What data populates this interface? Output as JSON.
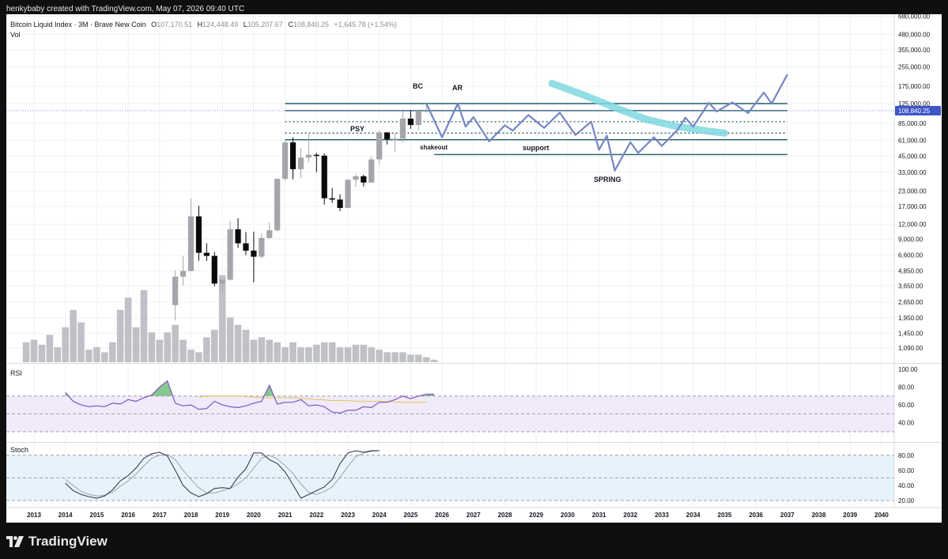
{
  "header": {
    "attribution": "henkybaby created with TradingView.com, May 07, 2026 09:40 UTC"
  },
  "legend": {
    "symbol": "Bitcoin Liquid Index · 3M · Brave New Coin",
    "o_label": "O",
    "o": "107,170.51",
    "h_label": "H",
    "h": "124,448.49",
    "l_label": "L",
    "l": "105,207.67",
    "c_label": "C",
    "c": "108,840.25",
    "change": "+1,645.78 (+1.54%)",
    "vol": "Vol"
  },
  "logo": {
    "text": "TradingView",
    "icon": "tradingview-logo-icon"
  },
  "colors": {
    "up": "#a5a6ab",
    "down": "#0a0a0a",
    "level": "#255b68",
    "projection": "#7686c4",
    "stroke": "#7fd8e0",
    "rsi_band": "#f0eafa",
    "stoch_band": "#e6f3fb"
  },
  "chart_data": [
    {
      "type": "candlestick",
      "title": "Bitcoin Liquid Index · 3M · Brave New Coin",
      "scale": "log",
      "ylim": [
        800,
        700000
      ],
      "y_ticks": [
        "680,000.00",
        "480,000.00",
        "355,000.00",
        "255,000.00",
        "175,000.00",
        "125,000.00",
        "85,000.00",
        "61,000.00",
        "45,000.00",
        "33,000.00",
        "23,000.00",
        "17,000.00",
        "12,000.00",
        "9,000.00",
        "6,600.00",
        "4,850.00",
        "3,650.00",
        "2,650.00",
        "1,950.00",
        "1,450.00",
        "1,090.00"
      ],
      "x_ticks": [
        "2013",
        "2014",
        "2015",
        "2016",
        "2017",
        "2018",
        "2019",
        "2020",
        "2021",
        "2022",
        "2023",
        "2024",
        "2025",
        "2026",
        "2027",
        "2028",
        "2029",
        "2030",
        "2031",
        "2032",
        "2033",
        "2034",
        "2035",
        "2036",
        "2037",
        "2038",
        "2039",
        "2040"
      ],
      "last_price": "108,840.25",
      "candles": [
        {
          "t": 2017.5,
          "o": 2500,
          "h": 4900,
          "l": 1850,
          "c": 4350
        },
        {
          "t": 2017.75,
          "o": 4350,
          "h": 6500,
          "l": 3650,
          "c": 4850
        },
        {
          "t": 2018.0,
          "o": 4850,
          "h": 19800,
          "l": 4800,
          "c": 14000
        },
        {
          "t": 2018.25,
          "o": 14000,
          "h": 17200,
          "l": 5900,
          "c": 6900
        },
        {
          "t": 2018.5,
          "o": 6900,
          "h": 8300,
          "l": 5900,
          "c": 6500
        },
        {
          "t": 2018.75,
          "o": 6500,
          "h": 7000,
          "l": 3600,
          "c": 3800
        },
        {
          "t": 2019.0,
          "o": 3800,
          "h": 4100,
          "l": 3300,
          "c": 4100
        },
        {
          "t": 2019.25,
          "o": 4100,
          "h": 12800,
          "l": 4000,
          "c": 10900
        },
        {
          "t": 2019.5,
          "o": 10900,
          "h": 13500,
          "l": 7600,
          "c": 8300
        },
        {
          "t": 2019.75,
          "o": 8300,
          "h": 10300,
          "l": 6600,
          "c": 7200
        },
        {
          "t": 2020.0,
          "o": 7200,
          "h": 10400,
          "l": 3900,
          "c": 6400
        },
        {
          "t": 2020.25,
          "o": 6400,
          "h": 10000,
          "l": 6200,
          "c": 9200
        },
        {
          "t": 2020.5,
          "o": 9200,
          "h": 12400,
          "l": 9000,
          "c": 10700
        },
        {
          "t": 2020.75,
          "o": 10700,
          "h": 29000,
          "l": 10400,
          "c": 29000
        },
        {
          "t": 2021.0,
          "o": 29000,
          "h": 62000,
          "l": 28000,
          "c": 58800
        },
        {
          "t": 2021.25,
          "o": 58800,
          "h": 65000,
          "l": 28800,
          "c": 35000
        },
        {
          "t": 2021.5,
          "o": 35000,
          "h": 52800,
          "l": 29300,
          "c": 43800
        },
        {
          "t": 2021.75,
          "o": 43800,
          "h": 69000,
          "l": 40000,
          "c": 46300
        },
        {
          "t": 2022.0,
          "o": 46300,
          "h": 48000,
          "l": 33000,
          "c": 45500
        },
        {
          "t": 2022.25,
          "o": 45500,
          "h": 47500,
          "l": 17600,
          "c": 19900
        },
        {
          "t": 2022.5,
          "o": 19900,
          "h": 24300,
          "l": 18200,
          "c": 19400
        },
        {
          "t": 2022.75,
          "o": 19400,
          "h": 21500,
          "l": 15500,
          "c": 16500
        },
        {
          "t": 2023.0,
          "o": 16500,
          "h": 29000,
          "l": 16500,
          "c": 28500
        },
        {
          "t": 2023.25,
          "o": 28500,
          "h": 31800,
          "l": 24800,
          "c": 30500
        },
        {
          "t": 2023.5,
          "o": 30500,
          "h": 31500,
          "l": 25000,
          "c": 27000
        },
        {
          "t": 2023.75,
          "o": 27000,
          "h": 44700,
          "l": 26900,
          "c": 42300
        },
        {
          "t": 2024.0,
          "o": 42300,
          "h": 73700,
          "l": 38500,
          "c": 71300
        },
        {
          "t": 2024.25,
          "o": 71300,
          "h": 72000,
          "l": 56500,
          "c": 62700
        },
        {
          "t": 2024.5,
          "o": 62700,
          "h": 70000,
          "l": 49000,
          "c": 63300
        },
        {
          "t": 2024.75,
          "o": 63300,
          "h": 108000,
          "l": 58900,
          "c": 93400
        },
        {
          "t": 2025.0,
          "o": 93400,
          "h": 109000,
          "l": 76600,
          "c": 82500
        },
        {
          "t": 2025.25,
          "o": 82500,
          "h": 111800,
          "l": 74400,
          "c": 107200
        },
        {
          "t": 2025.5,
          "o": 107170,
          "h": 124448,
          "l": 105207,
          "c": 108840
        }
      ]
    },
    {
      "type": "bar",
      "series_label": "Vol",
      "x_start": 2012.75,
      "step": 0.25,
      "values": [
        8,
        9,
        7,
        11,
        6,
        14,
        21,
        16,
        5,
        6,
        4,
        8,
        21,
        26,
        14,
        29,
        12,
        9,
        12,
        15,
        9,
        5,
        4,
        10,
        13,
        35,
        18,
        15,
        13,
        9,
        10,
        9,
        8,
        6,
        8,
        6,
        6,
        7,
        8,
        8,
        6,
        6,
        7,
        7,
        6,
        5,
        4,
        4,
        4,
        3,
        3,
        2,
        1
      ]
    },
    {
      "type": "line",
      "series_label": "RSI",
      "ylim": [
        30,
        100
      ],
      "y_ticks": [
        "100.00",
        "80.00",
        "60.00",
        "40.00"
      ],
      "overbought": 70,
      "midline": 50,
      "oversold": 30,
      "x_start": 2014.0,
      "step": 0.25,
      "values": [
        74,
        64,
        60,
        58,
        59,
        58,
        62,
        61,
        66,
        64,
        68,
        71,
        80,
        87,
        62,
        59,
        60,
        55,
        56,
        64,
        60,
        58,
        57,
        59,
        62,
        64,
        82,
        61,
        63,
        63,
        66,
        59,
        60,
        58,
        52,
        51,
        54,
        54,
        58,
        57,
        63,
        63,
        66,
        70,
        67,
        70,
        72,
        72
      ],
      "ma_values": [
        69,
        70,
        70,
        70,
        69,
        68,
        68,
        68,
        67,
        66,
        65,
        65,
        64,
        64,
        64,
        63,
        63,
        63
      ]
    },
    {
      "type": "line",
      "series_label": "Stoch",
      "ylim": [
        15,
        90
      ],
      "y_ticks": [
        "80.00",
        "60.00",
        "40.00",
        "20.00"
      ],
      "upper": 80,
      "mid": 50,
      "lower": 20,
      "x_start": 2014.0,
      "step": 0.25,
      "k_values": [
        43,
        33,
        28,
        25,
        23,
        26,
        34,
        46,
        53,
        63,
        76,
        82,
        84,
        79,
        60,
        40,
        30,
        25,
        29,
        36,
        37,
        36,
        51,
        62,
        83,
        83,
        74,
        69,
        58,
        41,
        23,
        28,
        33,
        38,
        48,
        69,
        83,
        86,
        84,
        86,
        86
      ],
      "d_values": [
        48,
        40,
        32,
        28,
        26,
        27,
        31,
        39,
        46,
        55,
        66,
        76,
        80,
        81,
        74,
        60,
        48,
        37,
        30,
        30,
        33,
        36,
        42,
        50,
        63,
        76,
        80,
        75,
        66,
        56,
        42,
        31,
        28,
        32,
        38,
        51,
        65,
        78,
        83,
        85,
        86
      ]
    }
  ],
  "annotations": {
    "labels": {
      "bc": "BC",
      "ar": "AR",
      "psy": "PSY",
      "shakeout": "shakeout",
      "support": "support",
      "spring": "SPRING"
    },
    "levels": [
      {
        "price": 125000,
        "style": "solid",
        "from": 2021.0,
        "to": 2037.0
      },
      {
        "price": 109000,
        "style": "solid",
        "from": 2021.0,
        "to": 2037.0
      },
      {
        "price": 88000,
        "style": "dotted",
        "from": 2021.0,
        "to": 2037.0
      },
      {
        "price": 70500,
        "style": "dotted",
        "from": 2021.0,
        "to": 2037.0
      },
      {
        "price": 62000,
        "style": "solid",
        "from": 2021.0,
        "to": 2037.0
      },
      {
        "price": 46500,
        "style": "solid",
        "from": 2025.75,
        "to": 2037.0
      }
    ],
    "projection": [
      [
        2025.5,
        125000
      ],
      [
        2026.0,
        65000
      ],
      [
        2026.5,
        125000
      ],
      [
        2026.75,
        80000
      ],
      [
        2027.0,
        96000
      ],
      [
        2027.5,
        60000
      ],
      [
        2028.0,
        82000
      ],
      [
        2028.25,
        74000
      ],
      [
        2028.75,
        100000
      ],
      [
        2029.25,
        78000
      ],
      [
        2029.75,
        105000
      ],
      [
        2030.25,
        68000
      ],
      [
        2030.75,
        88000
      ],
      [
        2031.0,
        51000
      ],
      [
        2031.25,
        67000
      ],
      [
        2031.5,
        34000
      ],
      [
        2032.0,
        59000
      ],
      [
        2032.25,
        48000
      ],
      [
        2032.75,
        65000
      ],
      [
        2033.0,
        55000
      ],
      [
        2033.5,
        75000
      ],
      [
        2033.75,
        95000
      ],
      [
        2034.0,
        80000
      ],
      [
        2034.5,
        127000
      ],
      [
        2034.75,
        107000
      ],
      [
        2035.25,
        128000
      ],
      [
        2035.75,
        104000
      ],
      [
        2036.25,
        155000
      ],
      [
        2036.5,
        125000
      ],
      [
        2037.0,
        220000
      ]
    ],
    "stroke": [
      [
        2029.5,
        185000
      ],
      [
        2030.5,
        148000
      ],
      [
        2031.5,
        116000
      ],
      [
        2032.5,
        92000
      ],
      [
        2033.5,
        80000
      ],
      [
        2034.5,
        73000
      ],
      [
        2035.0,
        70500
      ]
    ]
  }
}
